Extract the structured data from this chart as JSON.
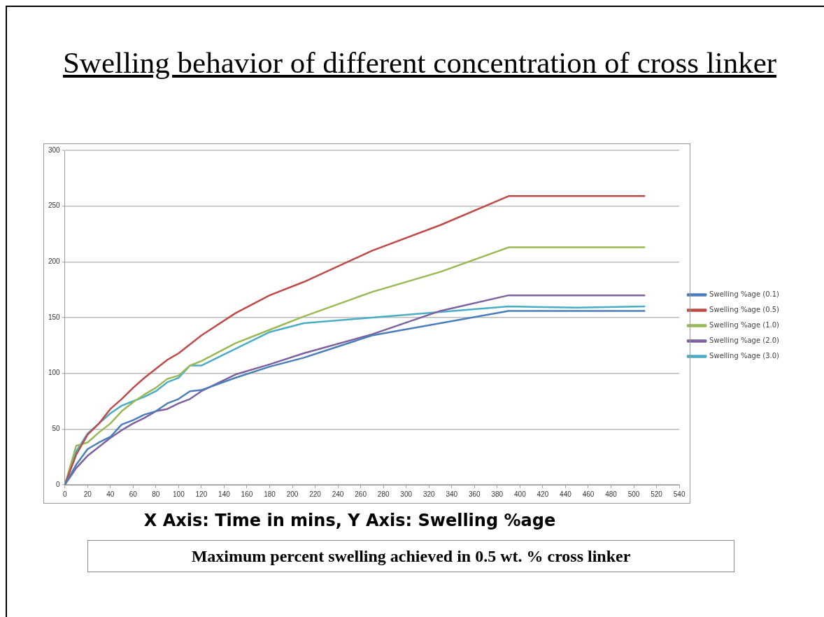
{
  "chart_data": {
    "type": "line",
    "title": "Swelling behavior of different concentration of cross linker",
    "x": [
      0,
      10,
      20,
      30,
      40,
      50,
      60,
      70,
      80,
      90,
      100,
      110,
      120,
      150,
      180,
      210,
      270,
      330,
      390,
      450,
      510
    ],
    "series": [
      {
        "name": "Swelling %age (0.1)",
        "color": "#4a7ebb",
        "values": [
          0,
          18,
          32,
          38,
          43,
          54,
          58,
          63,
          66,
          73,
          77,
          84,
          85,
          96,
          106,
          114,
          134,
          145,
          156,
          156,
          156
        ]
      },
      {
        "name": "Swelling %age (0.5)",
        "color": "#be4b48",
        "values": [
          0,
          27,
          45,
          55,
          68,
          77,
          87,
          96,
          104,
          112,
          118,
          126,
          134,
          154,
          170,
          182,
          210,
          233,
          259,
          259,
          259
        ]
      },
      {
        "name": "Swelling %age (1.0)",
        "color": "#98b954",
        "values": [
          0,
          35,
          38,
          47,
          55,
          66,
          74,
          81,
          87,
          95,
          98,
          107,
          111,
          127,
          139,
          151,
          173,
          191,
          213,
          213,
          213
        ]
      },
      {
        "name": "Swelling %age (2.0)",
        "color": "#7d60a0",
        "values": [
          0,
          15,
          26,
          34,
          42,
          49,
          55,
          60,
          66,
          68,
          73,
          77,
          84,
          99,
          108,
          118,
          135,
          156,
          170,
          170,
          170
        ]
      },
      {
        "name": "Swelling %age (3.0)",
        "color": "#4bacc6",
        "values": [
          0,
          30,
          46,
          55,
          64,
          71,
          75,
          79,
          84,
          92,
          96,
          107,
          107,
          122,
          137,
          145,
          150,
          155,
          160,
          159,
          160
        ]
      }
    ],
    "xlim": [
      0,
      540
    ],
    "xticks": [
      0,
      20,
      40,
      60,
      80,
      100,
      120,
      140,
      160,
      180,
      200,
      220,
      240,
      260,
      280,
      300,
      320,
      340,
      360,
      380,
      400,
      420,
      440,
      460,
      480,
      500,
      520,
      540
    ],
    "ylim": [
      0,
      300
    ],
    "yticks": [
      0,
      50,
      100,
      150,
      200,
      250,
      300
    ],
    "grid": "y",
    "legend": "right",
    "marker": "none",
    "line_style": "solid",
    "annotations": [
      "X Axis: Time in mins, Y Axis: Swelling %age",
      "Maximum percent swelling achieved in 0.5 wt. % cross linker"
    ]
  }
}
